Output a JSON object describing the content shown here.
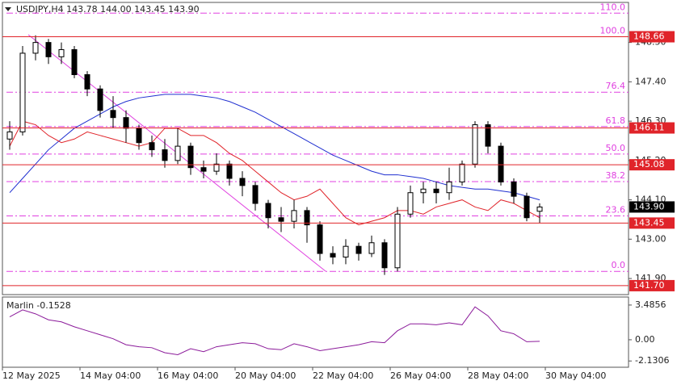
{
  "chart_data": [
    {
      "type": "candlestick",
      "title": "USDJPY,H4  143.78 144.00 143.45 143.90",
      "open": [
        145.8,
        146.0,
        148.2,
        148.5,
        148.1,
        148.3,
        147.6,
        147.2,
        146.6,
        146.4,
        146.1,
        145.7,
        145.5,
        145.2,
        145.6,
        145.0,
        144.9,
        145.1,
        144.7,
        144.5,
        144.0,
        143.6,
        143.5,
        143.8,
        143.4,
        142.6,
        142.5,
        142.8,
        142.6,
        142.9,
        142.2,
        143.7,
        144.3,
        144.4,
        144.3,
        144.6,
        145.1,
        146.2,
        145.6,
        144.6,
        144.2,
        143.78
      ],
      "high": [
        146.3,
        148.4,
        148.7,
        148.6,
        148.5,
        148.4,
        147.7,
        147.3,
        147.0,
        146.6,
        146.2,
        145.9,
        145.8,
        146.1,
        145.7,
        145.2,
        145.4,
        145.2,
        144.9,
        144.6,
        144.1,
        143.9,
        144.1,
        143.9,
        143.5,
        142.8,
        143.0,
        142.9,
        143.1,
        143.0,
        143.9,
        144.5,
        144.6,
        144.6,
        145.0,
        145.2,
        146.3,
        146.3,
        145.7,
        144.7,
        144.3,
        144.0
      ],
      "low": [
        145.5,
        145.9,
        148.0,
        147.9,
        147.9,
        147.5,
        147.0,
        146.4,
        146.1,
        145.7,
        145.5,
        145.3,
        145.0,
        145.1,
        144.8,
        144.7,
        144.8,
        144.5,
        144.2,
        143.8,
        143.3,
        143.2,
        143.3,
        142.9,
        142.4,
        142.3,
        142.3,
        142.4,
        142.5,
        142.0,
        142.1,
        143.6,
        144.0,
        144.0,
        144.1,
        144.5,
        145.0,
        145.4,
        144.5,
        144.0,
        143.5,
        143.45
      ],
      "close": [
        146.0,
        148.2,
        148.5,
        148.1,
        148.3,
        147.6,
        147.2,
        146.6,
        146.4,
        146.1,
        145.7,
        145.5,
        145.2,
        145.6,
        145.0,
        144.9,
        145.1,
        144.7,
        144.5,
        144.0,
        143.6,
        143.5,
        143.8,
        143.4,
        142.6,
        142.5,
        142.8,
        142.6,
        142.9,
        142.2,
        143.7,
        144.3,
        144.4,
        144.3,
        144.6,
        145.1,
        146.2,
        145.6,
        144.6,
        144.2,
        143.6,
        143.9
      ],
      "series": [
        {
          "color": "#1f2fd0",
          "values": [
            144.3,
            144.7,
            145.1,
            145.5,
            145.8,
            146.1,
            146.3,
            146.5,
            146.7,
            146.85,
            146.95,
            147.0,
            147.05,
            147.05,
            147.05,
            147.0,
            146.95,
            146.85,
            146.7,
            146.55,
            146.35,
            146.15,
            145.95,
            145.75,
            145.55,
            145.35,
            145.2,
            145.05,
            144.9,
            144.8,
            144.8,
            144.75,
            144.7,
            144.6,
            144.5,
            144.45,
            144.4,
            144.4,
            144.35,
            144.3,
            144.2,
            144.1
          ]
        },
        {
          "color": "#e0242a",
          "values": [
            145.6,
            146.3,
            146.2,
            145.9,
            145.7,
            145.8,
            146.0,
            145.9,
            145.8,
            145.7,
            145.6,
            145.7,
            146.1,
            146.1,
            145.9,
            145.9,
            145.7,
            145.4,
            145.2,
            144.9,
            144.6,
            144.3,
            144.1,
            144.2,
            144.4,
            144.0,
            143.6,
            143.4,
            143.5,
            143.6,
            143.8,
            143.8,
            143.7,
            143.9,
            144.0,
            144.1,
            143.9,
            143.8,
            144.1,
            144.0,
            143.8,
            143.6
          ]
        }
      ],
      "levels": [
        {
          "value": 148.66,
          "label": "148.66"
        },
        {
          "value": 146.11,
          "label": "146.11"
        },
        {
          "value": 145.08,
          "label": "145.08"
        },
        {
          "value": 143.45,
          "label": "143.45"
        },
        {
          "value": 141.7,
          "label": "141.70"
        }
      ],
      "current_price": {
        "value": 143.9,
        "label": "143.90"
      },
      "fib_levels": [
        {
          "value": 149.32,
          "label": "110.0"
        },
        {
          "value": 148.66,
          "label": "100.0"
        },
        {
          "value": 147.11,
          "label": "76.4"
        },
        {
          "value": 146.15,
          "label": "61.8"
        },
        {
          "value": 145.38,
          "label": "50.0"
        },
        {
          "value": 144.61,
          "label": "38.2"
        },
        {
          "value": 143.65,
          "label": "23.6"
        },
        {
          "value": 142.1,
          "label": "0.0"
        }
      ],
      "ylim": [
        141.45,
        149.62
      ],
      "yticks": [
        {
          "value": 148.5,
          "label": "148.50"
        },
        {
          "value": 147.4,
          "label": "147.40"
        },
        {
          "value": 146.3,
          "label": "146.30"
        },
        {
          "value": 145.2,
          "label": "145.20"
        },
        {
          "value": 144.1,
          "label": "144.10"
        },
        {
          "value": 143,
          "label": "143.00"
        },
        {
          "value": 141.9,
          "label": "141.90"
        }
      ],
      "x_labels": [
        "12 May 2025",
        "14 May 04:00",
        "16 May 04:00",
        "20 May 04:00",
        "22 May 04:00",
        "26 May 04:00",
        "28 May 04:00",
        "30 May 04:00"
      ]
    },
    {
      "type": "line",
      "title": "Marlin -0.1528",
      "color": "#8b1a9a",
      "values": [
        2.3,
        3.0,
        2.6,
        2.0,
        1.8,
        1.3,
        0.9,
        0.5,
        0.1,
        -0.5,
        -0.7,
        -0.8,
        -1.3,
        -1.5,
        -0.9,
        -1.2,
        -0.7,
        -0.5,
        -0.3,
        -0.4,
        -0.9,
        -1.0,
        -0.4,
        -0.7,
        -1.1,
        -0.9,
        -0.7,
        -0.5,
        -0.2,
        -0.3,
        0.9,
        1.6,
        1.6,
        1.5,
        1.7,
        1.5,
        3.3,
        2.4,
        0.9,
        0.6,
        -0.2,
        -0.1528
      ],
      "ylim": [
        -2.76,
        4.29
      ],
      "yticks": [
        3.4856,
        {
          "value": 0,
          "label": "0.00"
        },
        -2.1306
      ]
    }
  ]
}
